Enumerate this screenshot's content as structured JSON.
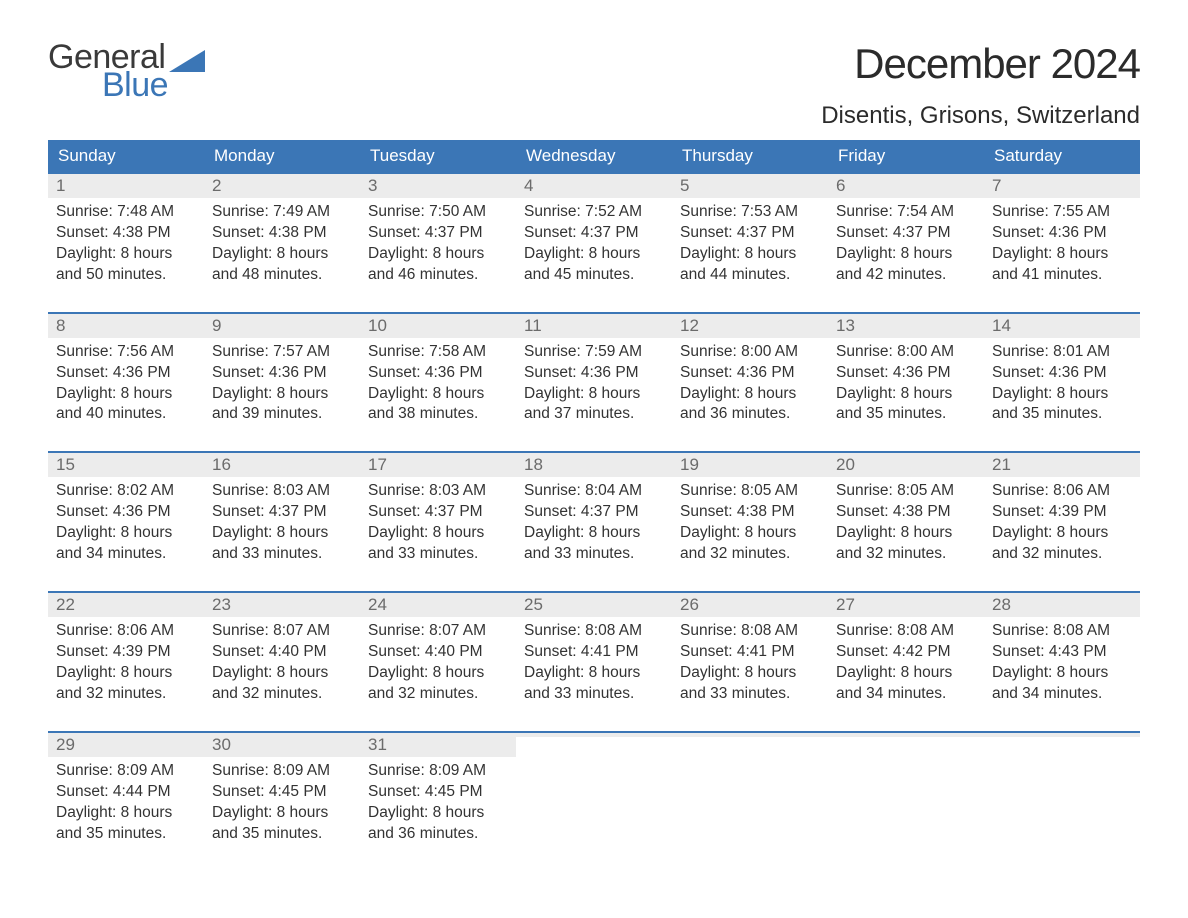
{
  "brand": {
    "word1": "General",
    "word2": "Blue",
    "accent_color": "#3b76b6"
  },
  "title": "December 2024",
  "location": "Disentis, Grisons, Switzerland",
  "colors": {
    "header_bg": "#3b76b6",
    "header_text": "#ffffff",
    "daynum_bg": "#ececec",
    "daynum_text": "#6b6b6b",
    "body_text": "#333333",
    "week_divider": "#3b76b6",
    "page_bg": "#ffffff"
  },
  "typography": {
    "title_fontsize": 42,
    "location_fontsize": 24,
    "header_fontsize": 17,
    "daynum_fontsize": 17,
    "body_fontsize": 15.5
  },
  "day_labels": [
    "Sunday",
    "Monday",
    "Tuesday",
    "Wednesday",
    "Thursday",
    "Friday",
    "Saturday"
  ],
  "weeks": [
    [
      {
        "n": "1",
        "sunrise": "Sunrise: 7:48 AM",
        "sunset": "Sunset: 4:38 PM",
        "d1": "Daylight: 8 hours",
        "d2": "and 50 minutes."
      },
      {
        "n": "2",
        "sunrise": "Sunrise: 7:49 AM",
        "sunset": "Sunset: 4:38 PM",
        "d1": "Daylight: 8 hours",
        "d2": "and 48 minutes."
      },
      {
        "n": "3",
        "sunrise": "Sunrise: 7:50 AM",
        "sunset": "Sunset: 4:37 PM",
        "d1": "Daylight: 8 hours",
        "d2": "and 46 minutes."
      },
      {
        "n": "4",
        "sunrise": "Sunrise: 7:52 AM",
        "sunset": "Sunset: 4:37 PM",
        "d1": "Daylight: 8 hours",
        "d2": "and 45 minutes."
      },
      {
        "n": "5",
        "sunrise": "Sunrise: 7:53 AM",
        "sunset": "Sunset: 4:37 PM",
        "d1": "Daylight: 8 hours",
        "d2": "and 44 minutes."
      },
      {
        "n": "6",
        "sunrise": "Sunrise: 7:54 AM",
        "sunset": "Sunset: 4:37 PM",
        "d1": "Daylight: 8 hours",
        "d2": "and 42 minutes."
      },
      {
        "n": "7",
        "sunrise": "Sunrise: 7:55 AM",
        "sunset": "Sunset: 4:36 PM",
        "d1": "Daylight: 8 hours",
        "d2": "and 41 minutes."
      }
    ],
    [
      {
        "n": "8",
        "sunrise": "Sunrise: 7:56 AM",
        "sunset": "Sunset: 4:36 PM",
        "d1": "Daylight: 8 hours",
        "d2": "and 40 minutes."
      },
      {
        "n": "9",
        "sunrise": "Sunrise: 7:57 AM",
        "sunset": "Sunset: 4:36 PM",
        "d1": "Daylight: 8 hours",
        "d2": "and 39 minutes."
      },
      {
        "n": "10",
        "sunrise": "Sunrise: 7:58 AM",
        "sunset": "Sunset: 4:36 PM",
        "d1": "Daylight: 8 hours",
        "d2": "and 38 minutes."
      },
      {
        "n": "11",
        "sunrise": "Sunrise: 7:59 AM",
        "sunset": "Sunset: 4:36 PM",
        "d1": "Daylight: 8 hours",
        "d2": "and 37 minutes."
      },
      {
        "n": "12",
        "sunrise": "Sunrise: 8:00 AM",
        "sunset": "Sunset: 4:36 PM",
        "d1": "Daylight: 8 hours",
        "d2": "and 36 minutes."
      },
      {
        "n": "13",
        "sunrise": "Sunrise: 8:00 AM",
        "sunset": "Sunset: 4:36 PM",
        "d1": "Daylight: 8 hours",
        "d2": "and 35 minutes."
      },
      {
        "n": "14",
        "sunrise": "Sunrise: 8:01 AM",
        "sunset": "Sunset: 4:36 PM",
        "d1": "Daylight: 8 hours",
        "d2": "and 35 minutes."
      }
    ],
    [
      {
        "n": "15",
        "sunrise": "Sunrise: 8:02 AM",
        "sunset": "Sunset: 4:36 PM",
        "d1": "Daylight: 8 hours",
        "d2": "and 34 minutes."
      },
      {
        "n": "16",
        "sunrise": "Sunrise: 8:03 AM",
        "sunset": "Sunset: 4:37 PM",
        "d1": "Daylight: 8 hours",
        "d2": "and 33 minutes."
      },
      {
        "n": "17",
        "sunrise": "Sunrise: 8:03 AM",
        "sunset": "Sunset: 4:37 PM",
        "d1": "Daylight: 8 hours",
        "d2": "and 33 minutes."
      },
      {
        "n": "18",
        "sunrise": "Sunrise: 8:04 AM",
        "sunset": "Sunset: 4:37 PM",
        "d1": "Daylight: 8 hours",
        "d2": "and 33 minutes."
      },
      {
        "n": "19",
        "sunrise": "Sunrise: 8:05 AM",
        "sunset": "Sunset: 4:38 PM",
        "d1": "Daylight: 8 hours",
        "d2": "and 32 minutes."
      },
      {
        "n": "20",
        "sunrise": "Sunrise: 8:05 AM",
        "sunset": "Sunset: 4:38 PM",
        "d1": "Daylight: 8 hours",
        "d2": "and 32 minutes."
      },
      {
        "n": "21",
        "sunrise": "Sunrise: 8:06 AM",
        "sunset": "Sunset: 4:39 PM",
        "d1": "Daylight: 8 hours",
        "d2": "and 32 minutes."
      }
    ],
    [
      {
        "n": "22",
        "sunrise": "Sunrise: 8:06 AM",
        "sunset": "Sunset: 4:39 PM",
        "d1": "Daylight: 8 hours",
        "d2": "and 32 minutes."
      },
      {
        "n": "23",
        "sunrise": "Sunrise: 8:07 AM",
        "sunset": "Sunset: 4:40 PM",
        "d1": "Daylight: 8 hours",
        "d2": "and 32 minutes."
      },
      {
        "n": "24",
        "sunrise": "Sunrise: 8:07 AM",
        "sunset": "Sunset: 4:40 PM",
        "d1": "Daylight: 8 hours",
        "d2": "and 32 minutes."
      },
      {
        "n": "25",
        "sunrise": "Sunrise: 8:08 AM",
        "sunset": "Sunset: 4:41 PM",
        "d1": "Daylight: 8 hours",
        "d2": "and 33 minutes."
      },
      {
        "n": "26",
        "sunrise": "Sunrise: 8:08 AM",
        "sunset": "Sunset: 4:41 PM",
        "d1": "Daylight: 8 hours",
        "d2": "and 33 minutes."
      },
      {
        "n": "27",
        "sunrise": "Sunrise: 8:08 AM",
        "sunset": "Sunset: 4:42 PM",
        "d1": "Daylight: 8 hours",
        "d2": "and 34 minutes."
      },
      {
        "n": "28",
        "sunrise": "Sunrise: 8:08 AM",
        "sunset": "Sunset: 4:43 PM",
        "d1": "Daylight: 8 hours",
        "d2": "and 34 minutes."
      }
    ],
    [
      {
        "n": "29",
        "sunrise": "Sunrise: 8:09 AM",
        "sunset": "Sunset: 4:44 PM",
        "d1": "Daylight: 8 hours",
        "d2": "and 35 minutes."
      },
      {
        "n": "30",
        "sunrise": "Sunrise: 8:09 AM",
        "sunset": "Sunset: 4:45 PM",
        "d1": "Daylight: 8 hours",
        "d2": "and 35 minutes."
      },
      {
        "n": "31",
        "sunrise": "Sunrise: 8:09 AM",
        "sunset": "Sunset: 4:45 PM",
        "d1": "Daylight: 8 hours",
        "d2": "and 36 minutes."
      },
      {
        "empty": true
      },
      {
        "empty": true
      },
      {
        "empty": true
      },
      {
        "empty": true
      }
    ]
  ]
}
